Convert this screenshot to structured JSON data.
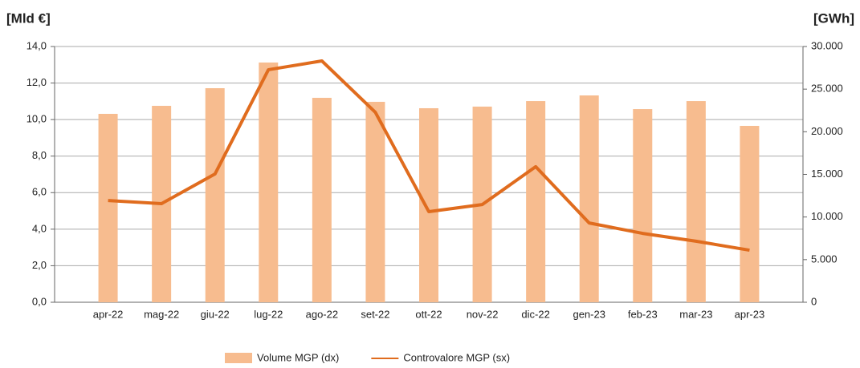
{
  "chart_data": {
    "type": "bar-line",
    "y_label": "[Mld €]",
    "y2_label": "[GWh]",
    "categories": [
      "apr-22",
      "mag-22",
      "giu-22",
      "lug-22",
      "ago-22",
      "set-22",
      "ott-22",
      "nov-22",
      "dic-22",
      "gen-23",
      "feb-23",
      "mar-23",
      "apr-23"
    ],
    "series": [
      {
        "name": "Volume MGP (dx)",
        "type": "bar",
        "axis": "y2",
        "color": "#f7bc8f",
        "values": [
          22100,
          23040,
          25110,
          28120,
          23980,
          23510,
          22760,
          22950,
          23600,
          24260,
          22660,
          23600,
          20690
        ]
      },
      {
        "name": "Controvalore MGP (sx)",
        "type": "line",
        "axis": "y",
        "color": "#e06c1e",
        "values": [
          5.57,
          5.4,
          7.02,
          12.73,
          13.21,
          10.4,
          4.96,
          5.35,
          7.42,
          4.34,
          3.77,
          3.34,
          2.85
        ]
      }
    ],
    "ylim": [
      0,
      14
    ],
    "yticks": [
      {
        "value": 0,
        "label": "0,0"
      },
      {
        "value": 2,
        "label": "2,0"
      },
      {
        "value": 4,
        "label": "4,0"
      },
      {
        "value": 6,
        "label": "6,0"
      },
      {
        "value": 8,
        "label": "8,0"
      },
      {
        "value": 10,
        "label": "10,0"
      },
      {
        "value": 12,
        "label": "12,0"
      },
      {
        "value": 14,
        "label": "14,0"
      }
    ],
    "y2lim": [
      0,
      30000
    ],
    "y2ticks": [
      0,
      {
        "value": 5000,
        "label": "5.000"
      },
      {
        "value": 10000,
        "label": "10.000"
      },
      {
        "value": 15000,
        "label": "15.000"
      },
      {
        "value": 20000,
        "label": "20.000"
      },
      {
        "value": 25000,
        "label": "25.000"
      },
      {
        "value": 30000,
        "label": "30.000"
      }
    ],
    "grid": true
  }
}
